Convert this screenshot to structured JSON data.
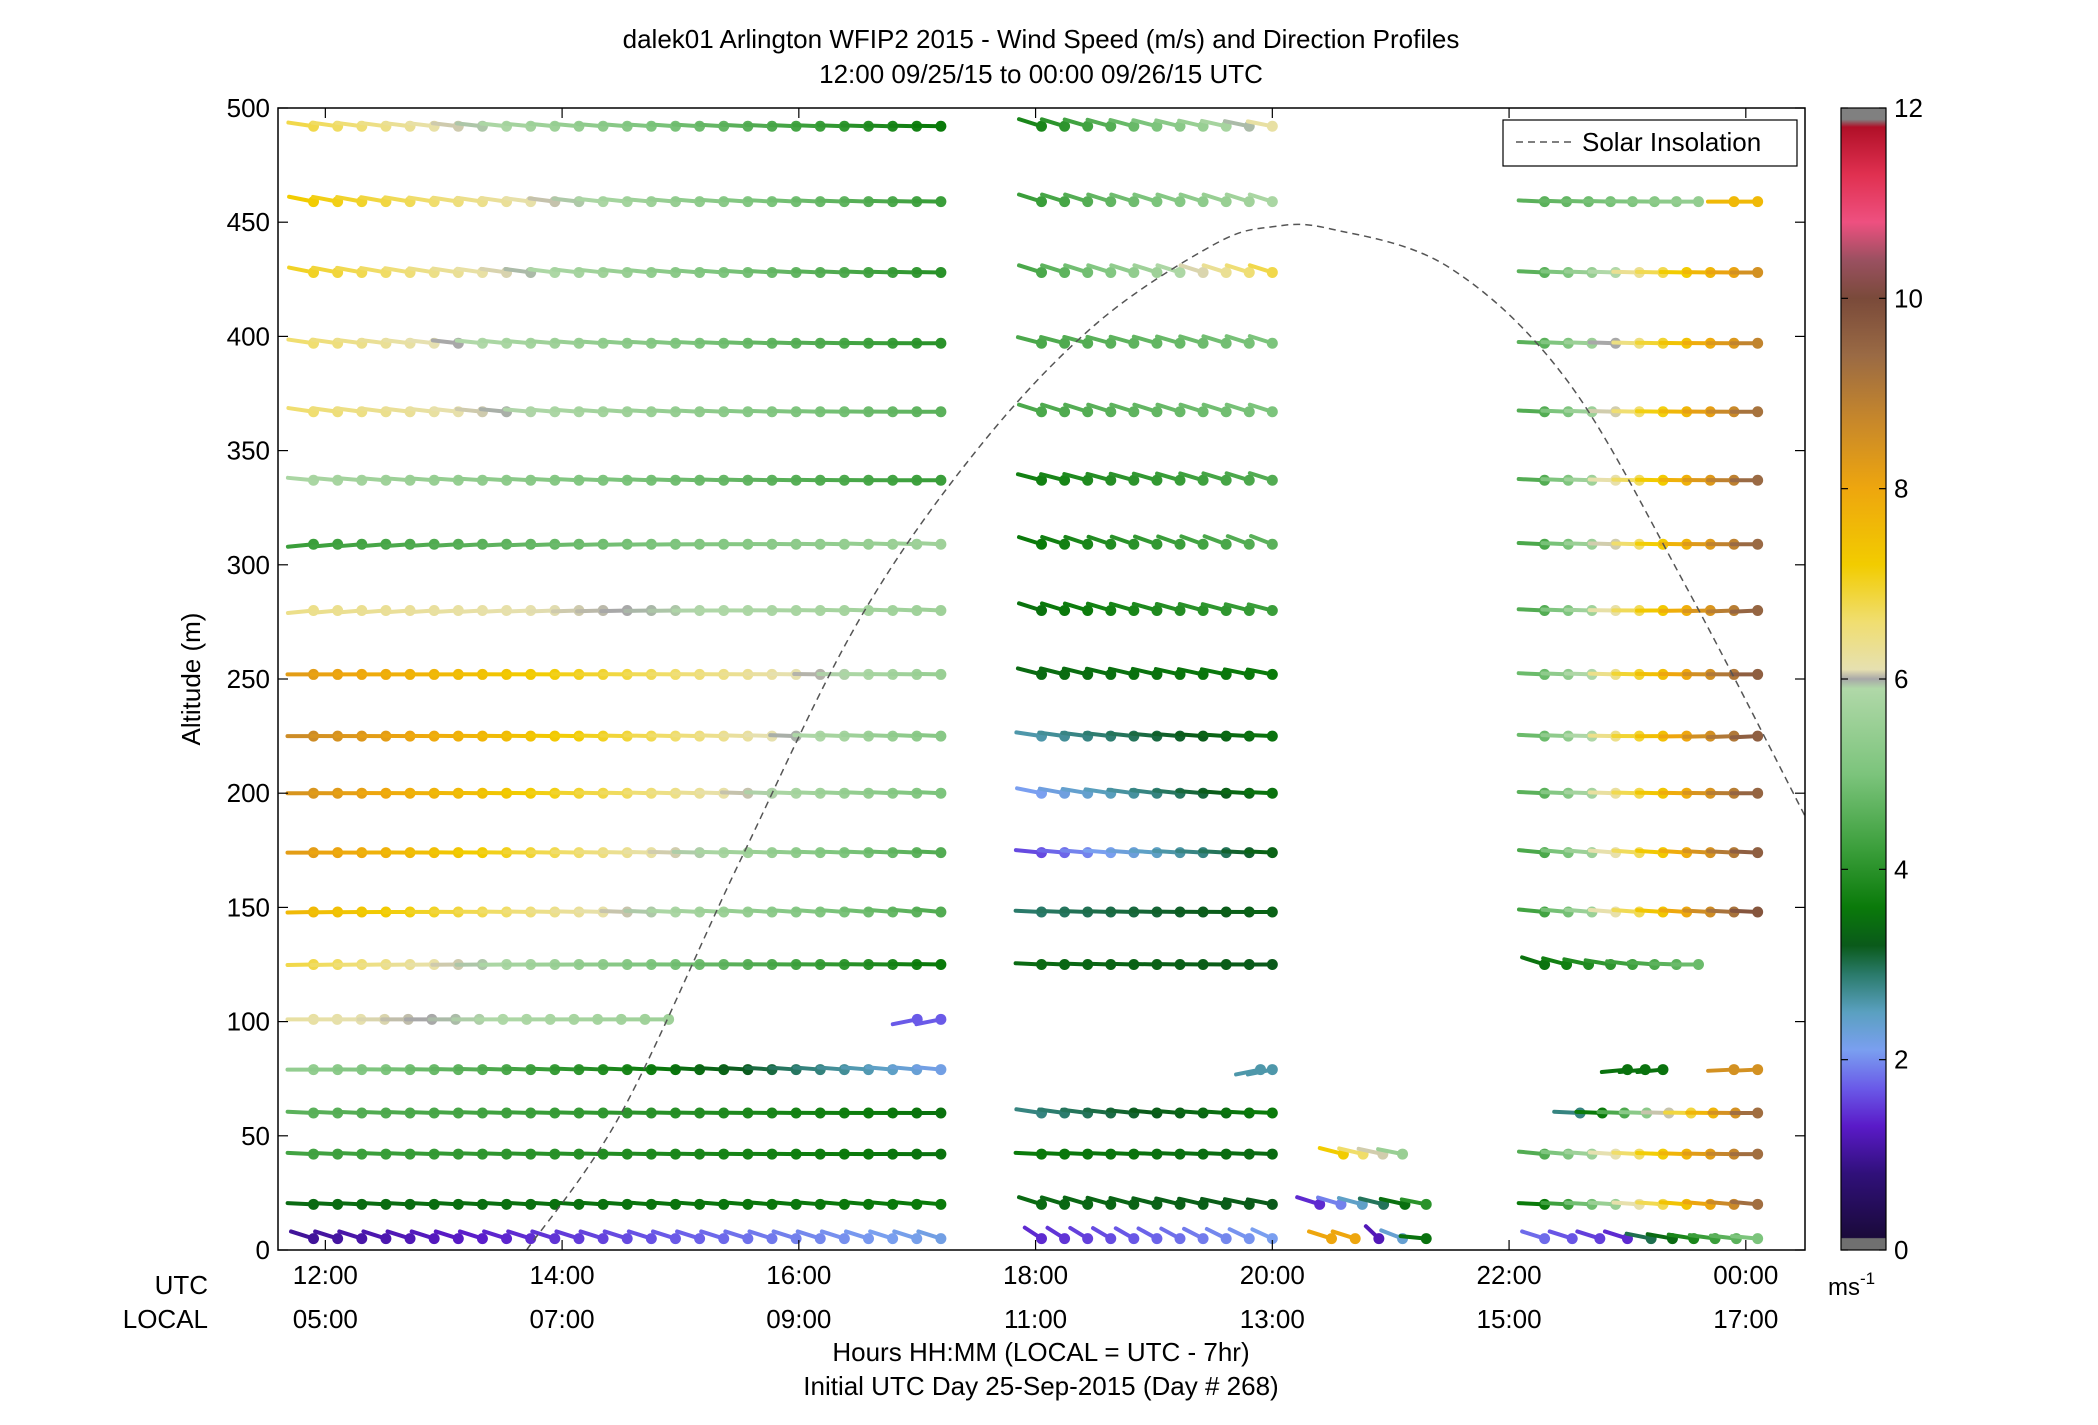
{
  "chart_data": {
    "type": "scatter",
    "title": "dalek01 Arlington WFIP2 2015 - Wind Speed (m/s) and Direction Profiles",
    "subtitle": "12:00 09/25/15 to 00:00 09/26/15  UTC",
    "xlabel": "Hours HH:MM  (LOCAL = UTC - 7hr)",
    "xlabel2": "Initial UTC Day 25-Sep-2015 (Day # 268)",
    "ylabel": "Altitude (m)",
    "x_row_label_utc": "UTC",
    "x_row_label_local": "LOCAL",
    "xlim": [
      11.6,
      24.5
    ],
    "ylim": [
      0,
      500
    ],
    "x_ticks": [
      12,
      14,
      16,
      18,
      20,
      22,
      24
    ],
    "x_tick_labels_utc": [
      "12:00",
      "14:00",
      "16:00",
      "18:00",
      "20:00",
      "22:00",
      "00:00"
    ],
    "x_tick_labels_local": [
      "05:00",
      "07:00",
      "09:00",
      "11:00",
      "13:00",
      "15:00",
      "17:00"
    ],
    "y_ticks": [
      0,
      50,
      100,
      150,
      200,
      250,
      300,
      350,
      400,
      450,
      500
    ],
    "y_tick_labels": [
      "0",
      "50",
      "100",
      "150",
      "200",
      "250",
      "300",
      "350",
      "400",
      "450",
      "500"
    ],
    "colorbar": {
      "range": [
        0,
        12
      ],
      "ticks": [
        0,
        2,
        4,
        6,
        8,
        10,
        12
      ],
      "tick_labels": [
        "0",
        "2",
        "4",
        "6",
        "8",
        "10",
        "12"
      ],
      "unit_label": "ms",
      "unit_exp": "-1",
      "stops": [
        {
          "v": 0.0,
          "c": "#707070"
        },
        {
          "v": 0.12,
          "c": "#707070"
        },
        {
          "v": 0.13,
          "c": "#1a0a3a"
        },
        {
          "v": 0.8,
          "c": "#30107a"
        },
        {
          "v": 1.3,
          "c": "#5a1ac8"
        },
        {
          "v": 1.7,
          "c": "#6a5ae8"
        },
        {
          "v": 2.1,
          "c": "#7a9ff0"
        },
        {
          "v": 2.5,
          "c": "#5aa0c0"
        },
        {
          "v": 2.9,
          "c": "#2a7a6a"
        },
        {
          "v": 3.2,
          "c": "#0a5a1a"
        },
        {
          "v": 3.6,
          "c": "#0a7a0a"
        },
        {
          "v": 4.2,
          "c": "#3a9e3a"
        },
        {
          "v": 5.0,
          "c": "#7cc47c"
        },
        {
          "v": 5.9,
          "c": "#b0d8a8"
        },
        {
          "v": 6.0,
          "c": "#a8a8a8"
        },
        {
          "v": 6.1,
          "c": "#e6e0b0"
        },
        {
          "v": 6.6,
          "c": "#f0de70"
        },
        {
          "v": 7.2,
          "c": "#f2cc00"
        },
        {
          "v": 8.0,
          "c": "#eea60e"
        },
        {
          "v": 8.7,
          "c": "#c8882a"
        },
        {
          "v": 9.4,
          "c": "#9a6a44"
        },
        {
          "v": 10.0,
          "c": "#7a4a3a"
        },
        {
          "v": 10.4,
          "c": "#9a5060"
        },
        {
          "v": 10.8,
          "c": "#ee5080"
        },
        {
          "v": 11.3,
          "c": "#e03050"
        },
        {
          "v": 11.8,
          "c": "#b01028"
        },
        {
          "v": 11.88,
          "c": "#808080"
        },
        {
          "v": 12.0,
          "c": "#808080"
        }
      ]
    },
    "legend": {
      "label": "Solar Insolation",
      "position": "top-right"
    },
    "solar_insolation": {
      "x": [
        13.7,
        14.5,
        15.5,
        16.5,
        17.5,
        18.5,
        19.5,
        20.0,
        20.5,
        21.5,
        22.5,
        23.5,
        24.5
      ],
      "y": [
        0,
        60,
        170,
        275,
        350,
        405,
        440,
        448,
        447,
        430,
        380,
        290,
        190
      ]
    },
    "series": [
      {
        "altitude": 5,
        "t_start": 11.9,
        "t_end": 17.2,
        "dir_start": 120,
        "dir_end": 120,
        "speed_start": 1.0,
        "speed_end": 2.2,
        "missing": [
          [
            16.6,
            16.6
          ]
        ]
      },
      {
        "altitude": 5,
        "t_start": 18.05,
        "t_end": 20.0,
        "dir_start": 140,
        "dir_end": 130,
        "speed_start": 1.4,
        "speed_end": 2.1
      },
      {
        "altitude": 5,
        "t_start": 20.5,
        "t_end": 20.7,
        "dir_start": 120,
        "dir_end": 120,
        "speed_start": 8.0,
        "speed_end": 8.0
      },
      {
        "altitude": 5,
        "t_start": 20.9,
        "t_end": 21.3,
        "dir_start": 150,
        "dir_end": 100,
        "speed_start": 1.2,
        "speed_end": 3.5
      },
      {
        "altitude": 5,
        "t_start": 22.3,
        "t_end": 23.0,
        "dir_start": 120,
        "dir_end": 120,
        "speed_start": 1.8,
        "speed_end": 1.4
      },
      {
        "altitude": 5,
        "t_start": 23.2,
        "t_end": 24.1,
        "dir_start": 110,
        "dir_end": 100,
        "speed_start": 3.0,
        "speed_end": 5.0
      },
      {
        "altitude": 20,
        "t_start": 11.9,
        "t_end": 17.2,
        "dir_start": 95,
        "dir_end": 100,
        "speed_start": 3.4,
        "speed_end": 3.6
      },
      {
        "altitude": 20,
        "t_start": 18.05,
        "t_end": 20.0,
        "dir_start": 120,
        "dir_end": 110,
        "speed_start": 3.4,
        "speed_end": 3.2
      },
      {
        "altitude": 20,
        "t_start": 20.4,
        "t_end": 21.3,
        "dir_start": 120,
        "dir_end": 110,
        "speed_start": 1.4,
        "speed_end": 4.0
      },
      {
        "altitude": 20,
        "t_start": 22.3,
        "t_end": 24.1,
        "dir_start": 95,
        "dir_end": 100,
        "speed_start": 3.6,
        "speed_end": 9.3
      },
      {
        "altitude": 42,
        "t_start": 11.9,
        "t_end": 17.2,
        "dir_start": 95,
        "dir_end": 90,
        "speed_start": 4.3,
        "speed_end": 3.5
      },
      {
        "altitude": 42,
        "t_start": 18.05,
        "t_end": 20.0,
        "dir_start": 95,
        "dir_end": 95,
        "speed_start": 3.6,
        "speed_end": 3.4
      },
      {
        "altitude": 42,
        "t_start": 20.6,
        "t_end": 21.1,
        "dir_start": 115,
        "dir_end": 110,
        "speed_start": 7.2,
        "speed_end": 5.5
      },
      {
        "altitude": 42,
        "t_start": 22.3,
        "t_end": 24.1,
        "dir_start": 100,
        "dir_end": 90,
        "speed_start": 4.5,
        "speed_end": 9.3
      },
      {
        "altitude": 60,
        "t_start": 11.9,
        "t_end": 17.2,
        "dir_start": 95,
        "dir_end": 90,
        "speed_start": 4.6,
        "speed_end": 3.5
      },
      {
        "altitude": 60,
        "t_start": 18.05,
        "t_end": 20.0,
        "dir_start": 105,
        "dir_end": 95,
        "speed_start": 2.8,
        "speed_end": 3.6
      },
      {
        "altitude": 60,
        "t_start": 22.6,
        "t_end": 24.1,
        "dir_start": 95,
        "dir_end": 90,
        "speed_start": 2.8,
        "speed_end": 9.3
      },
      {
        "altitude": 79,
        "t_start": 11.9,
        "t_end": 17.2,
        "dir_start": 90,
        "dir_end": 100,
        "speed_start": 5.4,
        "speed_end": 2.2
      },
      {
        "altitude": 79,
        "t_start": 19.9,
        "t_end": 20.0,
        "dir_start": 70,
        "dir_end": 70,
        "speed_start": 2.6,
        "speed_end": 2.6
      },
      {
        "altitude": 79,
        "t_start": 23.0,
        "t_end": 23.3,
        "dir_start": 80,
        "dir_end": 80,
        "speed_start": 3.5,
        "speed_end": 3.5
      },
      {
        "altitude": 79,
        "t_start": 23.9,
        "t_end": 24.1,
        "dir_start": 85,
        "dir_end": 85,
        "speed_start": 8.5,
        "speed_end": 8.5
      },
      {
        "altitude": 101,
        "t_start": 11.9,
        "t_end": 14.9,
        "dir_start": 90,
        "dir_end": 90,
        "speed_start": 6.2,
        "speed_end": 5.6
      },
      {
        "altitude": 101,
        "t_start": 17.0,
        "t_end": 17.2,
        "dir_start": 70,
        "dir_end": 70,
        "speed_start": 1.7,
        "speed_end": 1.7
      },
      {
        "altitude": 125,
        "t_start": 11.9,
        "t_end": 17.2,
        "dir_start": 88,
        "dir_end": 92,
        "speed_start": 6.8,
        "speed_end": 3.6
      },
      {
        "altitude": 125,
        "t_start": 18.05,
        "t_end": 20.0,
        "dir_start": 95,
        "dir_end": 90,
        "speed_start": 3.4,
        "speed_end": 3.2
      },
      {
        "altitude": 125,
        "t_start": 22.3,
        "t_end": 23.6,
        "dir_start": 120,
        "dir_end": 90,
        "speed_start": 3.5,
        "speed_end": 4.8
      },
      {
        "altitude": 148,
        "t_start": 11.9,
        "t_end": 17.2,
        "dir_start": 88,
        "dir_end": 100,
        "speed_start": 7.6,
        "speed_end": 4.5
      },
      {
        "altitude": 148,
        "t_start": 18.05,
        "t_end": 20.0,
        "dir_start": 95,
        "dir_end": 90,
        "speed_start": 2.9,
        "speed_end": 3.3
      },
      {
        "altitude": 148,
        "t_start": 22.3,
        "t_end": 24.1,
        "dir_start": 100,
        "dir_end": 95,
        "speed_start": 4.3,
        "speed_end": 9.8
      },
      {
        "altitude": 174,
        "t_start": 11.9,
        "t_end": 17.2,
        "dir_start": 90,
        "dir_end": 95,
        "speed_start": 8.2,
        "speed_end": 4.5
      },
      {
        "altitude": 174,
        "t_start": 18.05,
        "t_end": 20.0,
        "dir_start": 100,
        "dir_end": 95,
        "speed_start": 1.6,
        "speed_end": 3.3
      },
      {
        "altitude": 174,
        "t_start": 22.3,
        "t_end": 24.1,
        "dir_start": 100,
        "dir_end": 95,
        "speed_start": 4.4,
        "speed_end": 9.6
      },
      {
        "altitude": 200,
        "t_start": 11.9,
        "t_end": 17.2,
        "dir_start": 90,
        "dir_end": 95,
        "speed_start": 8.4,
        "speed_end": 5.0
      },
      {
        "altitude": 200,
        "t_start": 18.05,
        "t_end": 20.0,
        "dir_start": 110,
        "dir_end": 95,
        "speed_start": 2.1,
        "speed_end": 3.5
      },
      {
        "altitude": 200,
        "t_start": 22.3,
        "t_end": 24.1,
        "dir_start": 95,
        "dir_end": 90,
        "speed_start": 4.6,
        "speed_end": 9.5
      },
      {
        "altitude": 225,
        "t_start": 11.9,
        "t_end": 17.2,
        "dir_start": 90,
        "dir_end": 95,
        "speed_start": 8.6,
        "speed_end": 5.2
      },
      {
        "altitude": 225,
        "t_start": 18.05,
        "t_end": 20.0,
        "dir_start": 105,
        "dir_end": 95,
        "speed_start": 2.6,
        "speed_end": 3.5
      },
      {
        "altitude": 225,
        "t_start": 22.3,
        "t_end": 24.1,
        "dir_start": 95,
        "dir_end": 85,
        "speed_start": 4.8,
        "speed_end": 9.6
      },
      {
        "altitude": 252,
        "t_start": 11.9,
        "t_end": 17.2,
        "dir_start": 90,
        "dir_end": 92,
        "speed_start": 8.2,
        "speed_end": 5.5
      },
      {
        "altitude": 252,
        "t_start": 18.05,
        "t_end": 20.0,
        "dir_start": 115,
        "dir_end": 110,
        "speed_start": 3.4,
        "speed_end": 3.6
      },
      {
        "altitude": 252,
        "t_start": 22.3,
        "t_end": 24.1,
        "dir_start": 95,
        "dir_end": 90,
        "speed_start": 4.8,
        "speed_end": 9.6
      },
      {
        "altitude": 280,
        "t_start": 11.9,
        "t_end": 17.2,
        "dir_start": 80,
        "dir_end": 95,
        "speed_start": 6.4,
        "speed_end": 5.6
      },
      {
        "altitude": 280,
        "t_start": 18.05,
        "t_end": 20.0,
        "dir_start": 120,
        "dir_end": 115,
        "speed_start": 3.5,
        "speed_end": 4.2
      },
      {
        "altitude": 280,
        "t_start": 22.3,
        "t_end": 24.1,
        "dir_start": 95,
        "dir_end": 85,
        "speed_start": 4.5,
        "speed_end": 9.5
      },
      {
        "altitude": 309,
        "t_start": 11.9,
        "t_end": 17.2,
        "dir_start": 80,
        "dir_end": 95,
        "speed_start": 4.2,
        "speed_end": 5.6
      },
      {
        "altitude": 309,
        "t_start": 18.05,
        "t_end": 20.0,
        "dir_start": 120,
        "dir_end": 125,
        "speed_start": 3.6,
        "speed_end": 4.6
      },
      {
        "altitude": 309,
        "t_start": 22.3,
        "t_end": 24.1,
        "dir_start": 95,
        "dir_end": 90,
        "speed_start": 4.4,
        "speed_end": 9.4
      },
      {
        "altitude": 337,
        "t_start": 11.9,
        "t_end": 17.2,
        "dir_start": 100,
        "dir_end": 90,
        "speed_start": 5.8,
        "speed_end": 4.2
      },
      {
        "altitude": 337,
        "t_start": 18.05,
        "t_end": 20.0,
        "dir_start": 115,
        "dir_end": 120,
        "speed_start": 3.7,
        "speed_end": 4.5
      },
      {
        "altitude": 337,
        "t_start": 22.3,
        "t_end": 24.1,
        "dir_start": 95,
        "dir_end": 90,
        "speed_start": 4.5,
        "speed_end": 9.4
      },
      {
        "altitude": 367,
        "t_start": 11.9,
        "t_end": 17.2,
        "dir_start": 105,
        "dir_end": 90,
        "speed_start": 6.6,
        "speed_end": 4.6
      },
      {
        "altitude": 367,
        "t_start": 18.05,
        "t_end": 20.0,
        "dir_start": 120,
        "dir_end": 120,
        "speed_start": 4.4,
        "speed_end": 5.0
      },
      {
        "altitude": 367,
        "t_start": 22.3,
        "t_end": 24.1,
        "dir_start": 95,
        "dir_end": 90,
        "speed_start": 4.5,
        "speed_end": 9.2
      },
      {
        "altitude": 397,
        "t_start": 11.9,
        "t_end": 17.2,
        "dir_start": 105,
        "dir_end": 90,
        "speed_start": 6.6,
        "speed_end": 4.0
      },
      {
        "altitude": 397,
        "t_start": 18.05,
        "t_end": 20.0,
        "dir_start": 115,
        "dir_end": 120,
        "speed_start": 4.4,
        "speed_end": 5.0
      },
      {
        "altitude": 397,
        "t_start": 22.3,
        "t_end": 24.1,
        "dir_start": 95,
        "dir_end": 90,
        "speed_start": 4.6,
        "speed_end": 8.8
      },
      {
        "altitude": 428,
        "t_start": 11.9,
        "t_end": 17.2,
        "dir_start": 110,
        "dir_end": 92,
        "speed_start": 7.0,
        "speed_end": 4.0
      },
      {
        "altitude": 428,
        "t_start": 18.05,
        "t_end": 20.0,
        "dir_start": 120,
        "dir_end": 120,
        "speed_start": 4.4,
        "speed_end": 6.8
      },
      {
        "altitude": 428,
        "t_start": 22.3,
        "t_end": 24.1,
        "dir_start": 95,
        "dir_end": 90,
        "speed_start": 4.6,
        "speed_end": 8.5
      },
      {
        "altitude": 459,
        "t_start": 11.9,
        "t_end": 17.2,
        "dir_start": 110,
        "dir_end": 92,
        "speed_start": 7.2,
        "speed_end": 4.2
      },
      {
        "altitude": 459,
        "t_start": 18.05,
        "t_end": 20.0,
        "dir_start": 120,
        "dir_end": 120,
        "speed_start": 4.2,
        "speed_end": 5.8
      },
      {
        "altitude": 459,
        "t_start": 22.3,
        "t_end": 23.6,
        "dir_start": 95,
        "dir_end": 90,
        "speed_start": 4.6,
        "speed_end": 5.4
      },
      {
        "altitude": 459,
        "t_start": 23.9,
        "t_end": 24.1,
        "dir_start": 90,
        "dir_end": 90,
        "speed_start": 7.6,
        "speed_end": 7.6
      },
      {
        "altitude": 492,
        "t_start": 11.9,
        "t_end": 17.2,
        "dir_start": 105,
        "dir_end": 92,
        "speed_start": 6.8,
        "speed_end": 3.6
      },
      {
        "altitude": 492,
        "t_start": 18.05,
        "t_end": 20.0,
        "dir_start": 120,
        "dir_end": 110,
        "speed_start": 3.8,
        "speed_end": 6.2
      }
    ]
  }
}
